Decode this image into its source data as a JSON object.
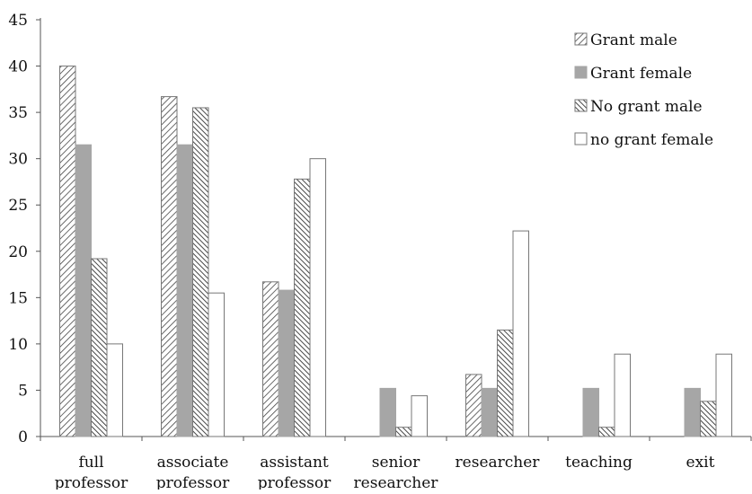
{
  "chart_data": {
    "type": "bar",
    "title": "",
    "xlabel": "",
    "ylabel": "",
    "ylim": [
      0,
      45
    ],
    "yticks": [
      0,
      5,
      10,
      15,
      20,
      25,
      30,
      35,
      40,
      45
    ],
    "categories": [
      [
        "full",
        "professor"
      ],
      [
        "associate",
        "professor"
      ],
      [
        "assistant",
        "professor"
      ],
      [
        "senior",
        "researcher"
      ],
      [
        "researcher"
      ],
      [
        "teaching"
      ],
      [
        "exit"
      ]
    ],
    "series": [
      {
        "name": "Grant male",
        "style": "hatch-fwd",
        "color": "#555555",
        "values": [
          40,
          36.7,
          16.7,
          0,
          6.7,
          0,
          0
        ]
      },
      {
        "name": "Grant female",
        "style": "solid-gray",
        "color": "#a6a6a6",
        "values": [
          31.5,
          31.5,
          15.8,
          5.2,
          5.2,
          5.2,
          5.2
        ]
      },
      {
        "name": "No grant male",
        "style": "hatch-back",
        "color": "#555555",
        "values": [
          19.2,
          35.5,
          27.8,
          1.0,
          11.5,
          1.0,
          3.8
        ]
      },
      {
        "name": "no grant female",
        "style": "outline",
        "color": "#ffffff",
        "values": [
          10,
          15.5,
          30,
          4.4,
          22.2,
          8.9,
          8.9
        ]
      }
    ],
    "legend_position": "top-right",
    "grid": false
  }
}
